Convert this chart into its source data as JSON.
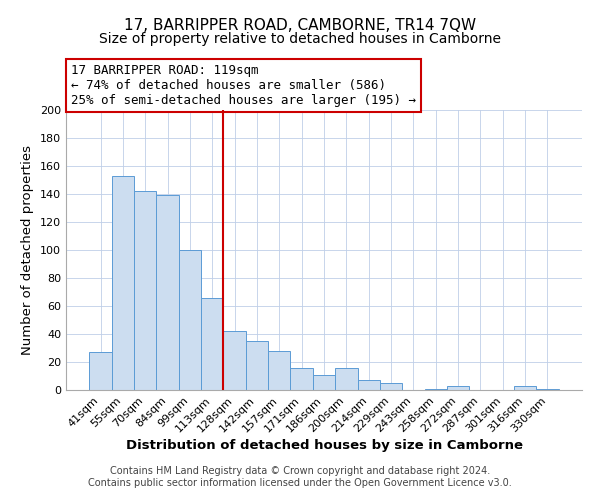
{
  "title": "17, BARRIPPER ROAD, CAMBORNE, TR14 7QW",
  "subtitle": "Size of property relative to detached houses in Camborne",
  "xlabel": "Distribution of detached houses by size in Camborne",
  "ylabel": "Number of detached properties",
  "bar_labels": [
    "41sqm",
    "55sqm",
    "70sqm",
    "84sqm",
    "99sqm",
    "113sqm",
    "128sqm",
    "142sqm",
    "157sqm",
    "171sqm",
    "186sqm",
    "200sqm",
    "214sqm",
    "229sqm",
    "243sqm",
    "258sqm",
    "272sqm",
    "287sqm",
    "301sqm",
    "316sqm",
    "330sqm"
  ],
  "bar_values": [
    27,
    153,
    142,
    139,
    100,
    66,
    42,
    35,
    28,
    16,
    11,
    16,
    7,
    5,
    0,
    1,
    3,
    0,
    0,
    3,
    1
  ],
  "bar_color": "#ccddf0",
  "bar_edge_color": "#5b9bd5",
  "vline_x": 6.0,
  "vline_color": "#cc0000",
  "annotation_line1": "17 BARRIPPER ROAD: 119sqm",
  "annotation_line2": "← 74% of detached houses are smaller (586)",
  "annotation_line3": "25% of semi-detached houses are larger (195) →",
  "annotation_box_edge": "#cc0000",
  "ylim": [
    0,
    200
  ],
  "yticks": [
    0,
    20,
    40,
    60,
    80,
    100,
    120,
    140,
    160,
    180,
    200
  ],
  "footer1": "Contains HM Land Registry data © Crown copyright and database right 2024.",
  "footer2": "Contains public sector information licensed under the Open Government Licence v3.0.",
  "bg_color": "#ffffff",
  "grid_color": "#bfcfe8",
  "title_fontsize": 11,
  "subtitle_fontsize": 10,
  "axis_label_fontsize": 9.5,
  "tick_fontsize": 8,
  "footer_fontsize": 7,
  "annotation_fontsize": 9
}
